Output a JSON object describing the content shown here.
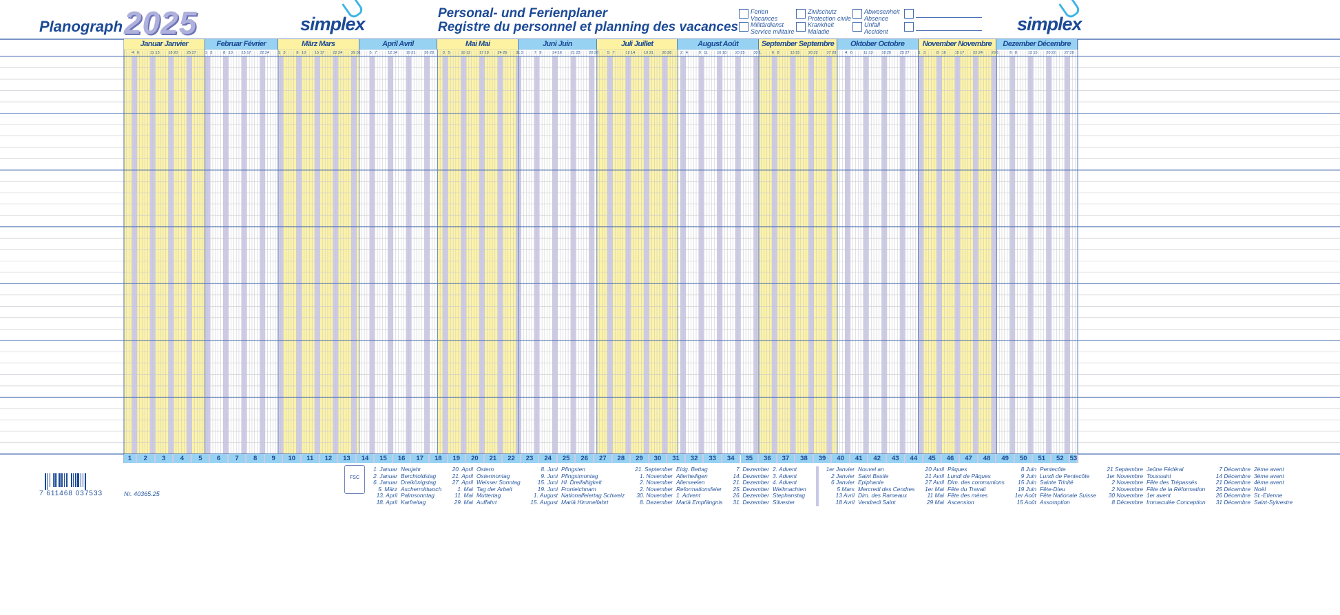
{
  "header": {
    "brand": "Planograph",
    "year": "2025",
    "logo": "simplex",
    "title_de": "Personal- und Ferienplaner",
    "title_fr": "Registre du personnel et planning des vacances"
  },
  "legend": [
    {
      "de": "Ferien",
      "fr": "Vacances"
    },
    {
      "de": "Militärdienst",
      "fr": "Service militaire"
    },
    {
      "de": "Zivilschutz",
      "fr": "Protection civile"
    },
    {
      "de": "Krankheit",
      "fr": "Maladie"
    },
    {
      "de": "Abwesenheit",
      "fr": "Absence"
    },
    {
      "de": "Unfall",
      "fr": "Accident"
    },
    {
      "de": "",
      "fr": ""
    },
    {
      "de": "",
      "fr": ""
    }
  ],
  "colors": {
    "yellow": "#fcf3a8",
    "blue_header": "#97d2f2",
    "weekend": "#cdcbe6",
    "text": "#1c4a96",
    "rule": "#4a6fb0"
  },
  "months": [
    {
      "name": "Januar  Janvier",
      "days": 31,
      "labels": [
        4,
        6,
        11,
        13,
        18,
        20,
        25,
        27
      ]
    },
    {
      "name": "Februar  Février",
      "days": 28,
      "labels": [
        1,
        3,
        8,
        10,
        15,
        17,
        22,
        24
      ]
    },
    {
      "name": "März  Mars",
      "days": 31,
      "labels": [
        1,
        3,
        8,
        10,
        15,
        17,
        22,
        24,
        29,
        31
      ]
    },
    {
      "name": "April  Avril",
      "days": 30,
      "labels": [
        5,
        7,
        12,
        14,
        19,
        21,
        26,
        28
      ]
    },
    {
      "name": "Mai  Mai",
      "days": 31,
      "labels": [
        3,
        5,
        10,
        12,
        17,
        19,
        24,
        26,
        31
      ]
    },
    {
      "name": "Juni  Juin",
      "days": 30,
      "labels": [
        2,
        7,
        9,
        14,
        16,
        21,
        23,
        28,
        30
      ]
    },
    {
      "name": "Juli  Juillet",
      "days": 31,
      "labels": [
        5,
        7,
        12,
        14,
        19,
        21,
        26,
        28
      ]
    },
    {
      "name": "August  Août",
      "days": 31,
      "labels": [
        2,
        4,
        9,
        11,
        16,
        18,
        23,
        25,
        30
      ]
    },
    {
      "name": "September  Septembre",
      "days": 30,
      "labels": [
        1,
        6,
        8,
        13,
        15,
        20,
        22,
        27,
        29
      ]
    },
    {
      "name": "Oktober  Octobre",
      "days": 31,
      "labels": [
        4,
        6,
        11,
        13,
        18,
        20,
        25,
        27
      ]
    },
    {
      "name": "November  Novembre",
      "days": 30,
      "labels": [
        1,
        3,
        8,
        10,
        15,
        17,
        22,
        24,
        29
      ]
    },
    {
      "name": "Dezember  Décembre",
      "days": 31,
      "labels": [
        1,
        6,
        8,
        13,
        15,
        20,
        22,
        27,
        29
      ]
    }
  ],
  "first_weekday": 3,
  "weeks": [
    1,
    2,
    3,
    4,
    5,
    6,
    7,
    8,
    9,
    10,
    11,
    12,
    13,
    14,
    15,
    16,
    17,
    18,
    19,
    20,
    21,
    22,
    23,
    24,
    25,
    26,
    27,
    28,
    29,
    30,
    31,
    32,
    33,
    34,
    35,
    36,
    37,
    38,
    39,
    40,
    41,
    42,
    43,
    44,
    45,
    46,
    47,
    48,
    49,
    50,
    51,
    52,
    53
  ],
  "footer": {
    "barcode": "7 611468 037533",
    "article": "Nr. 40365.25",
    "fsc": "FSC"
  },
  "holidays_de": [
    [
      [
        "1. Januar",
        "Neujahr"
      ],
      [
        "2. Januar",
        "Berchtoldstag"
      ],
      [
        "6. Januar",
        "Dreikönigstag"
      ],
      [
        "5. März",
        "Aschermittwoch"
      ],
      [
        "13. April",
        "Palmsonntag"
      ],
      [
        "18. April",
        "Karfreitag"
      ]
    ],
    [
      [
        "20. April",
        "Ostern"
      ],
      [
        "21. April",
        "Ostermontag"
      ],
      [
        "27. April",
        "Weisser Sonntag"
      ],
      [
        "1. Mai",
        "Tag der Arbeit"
      ],
      [
        "11. Mai",
        "Muttertag"
      ],
      [
        "29. Mai",
        "Auffahrt"
      ]
    ],
    [
      [
        "8. Juni",
        "Pfingsten"
      ],
      [
        "9. Juni",
        "Pfingstmontag"
      ],
      [
        "15. Juni",
        "Hl. Dreifaltigkeit"
      ],
      [
        "19. Juni",
        "Fronleichnam"
      ],
      [
        "1. August",
        "Nationalfeiertag Schweiz"
      ],
      [
        "15. August",
        "Mariä Himmelfahrt"
      ]
    ],
    [
      [
        "21. September",
        "Eidg. Bettag"
      ],
      [
        "1. November",
        "Allerheiligen"
      ],
      [
        "2. November",
        "Allerseelen"
      ],
      [
        "2. November",
        "Reformationsfeier"
      ],
      [
        "30. November",
        "1. Advent"
      ],
      [
        "8. Dezember",
        "Mariä Empfängnis"
      ]
    ],
    [
      [
        "7. Dezember",
        "2. Advent"
      ],
      [
        "14. Dezember",
        "3. Advent"
      ],
      [
        "21. Dezember",
        "4. Advent"
      ],
      [
        "25. Dezember",
        "Weihnachten"
      ],
      [
        "26. Dezember",
        "Stephanstag"
      ],
      [
        "31. Dezember",
        "Silvester"
      ]
    ]
  ],
  "holidays_fr": [
    [
      [
        "1er Janvier",
        "Nouvel an"
      ],
      [
        "2 Janvier",
        "Saint Basile"
      ],
      [
        "6 Janvier",
        "Epiphanie"
      ],
      [
        "5 Mars",
        "Mercredi des Cendres"
      ],
      [
        "13 Avril",
        "Dim. des Rameaux"
      ],
      [
        "18 Avril",
        "Vendredi Saint"
      ]
    ],
    [
      [
        "20 Avril",
        "Pâques"
      ],
      [
        "21 Avril",
        "Lundi de Pâques"
      ],
      [
        "27 Avril",
        "Dim. des communions"
      ],
      [
        "1er Mai",
        "Fête du Travail"
      ],
      [
        "11 Mai",
        "Fête des mères"
      ],
      [
        "29 Mai",
        "Ascension"
      ]
    ],
    [
      [
        "8 Juin",
        "Pentecôte"
      ],
      [
        "9 Juin",
        "Lundi de Pentecôte"
      ],
      [
        "15 Juin",
        "Sainte Trinité"
      ],
      [
        "19 Juin",
        "Fête-Dieu"
      ],
      [
        "1er Août",
        "Fête Nationale Suisse"
      ],
      [
        "15 Août",
        "Assomption"
      ]
    ],
    [
      [
        "21 Septembre",
        "Jeûne Fédéral"
      ],
      [
        "1er Novembre",
        "Toussaint"
      ],
      [
        "2 Novembre",
        "Fête des Trépassés"
      ],
      [
        "2 Novembre",
        "Fête de la Réformation"
      ],
      [
        "30 Novembre",
        "1er avent"
      ],
      [
        "8 Décembre",
        "Immaculée Conception"
      ]
    ],
    [
      [
        "7 Décembre",
        "2ème avent"
      ],
      [
        "14 Décembre",
        "3ème avent"
      ],
      [
        "21 Décembre",
        "4ème avent"
      ],
      [
        "25 Décembre",
        "Noël"
      ],
      [
        "26 Décembre",
        "St.-Etienne"
      ],
      [
        "31 Décembre",
        "Saint-Sylvestre"
      ]
    ]
  ]
}
